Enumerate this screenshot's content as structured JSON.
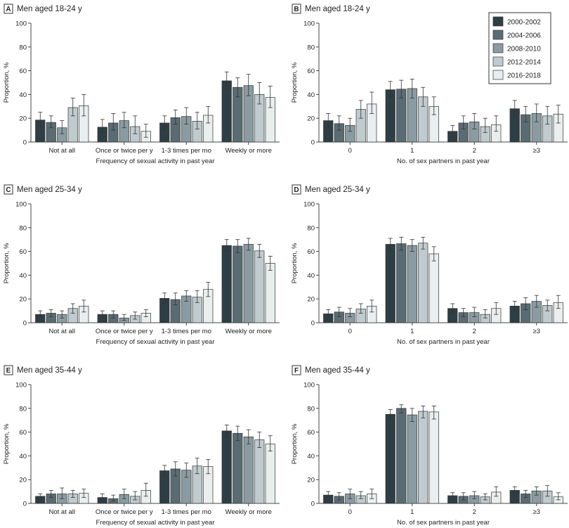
{
  "series_names": [
    "2000-2002",
    "2004-2006",
    "2008-2010",
    "2012-2014",
    "2016-2018"
  ],
  "colors": [
    "#2e3e45",
    "#5a6c73",
    "#8a9ca2",
    "#bfcbce",
    "#e9eeef"
  ],
  "chart_data": [
    {
      "type": "bar",
      "letter": "A",
      "title": "Men aged 18-24 y",
      "xlabel": "Frequency of sexual activity in past year",
      "ylabel": "Proportion, %",
      "ylim": [
        0,
        100
      ],
      "yticks": [
        0,
        20,
        40,
        60,
        80,
        100
      ],
      "categories": [
        "Not at all",
        "Once or twice per y",
        "1-3 times per mo",
        "Weekly or more"
      ],
      "series": [
        {
          "name": "2000-2002",
          "values": [
            18.5,
            12.5,
            16,
            51.5
          ],
          "lower": [
            13,
            8,
            11,
            45
          ],
          "upper": [
            25,
            19,
            22,
            59
          ]
        },
        {
          "name": "2004-2006",
          "values": [
            16.5,
            16,
            20.5,
            46
          ],
          "lower": [
            12,
            10,
            15,
            38
          ],
          "upper": [
            22,
            24,
            27,
            54
          ]
        },
        {
          "name": "2008-2010",
          "values": [
            12,
            18,
            21.5,
            47.5
          ],
          "lower": [
            7,
            12,
            15,
            39
          ],
          "upper": [
            18,
            25,
            29,
            57
          ]
        },
        {
          "name": "2012-2014",
          "values": [
            29,
            13,
            17.5,
            40
          ],
          "lower": [
            22,
            7,
            11,
            32
          ],
          "upper": [
            37,
            22,
            25,
            50
          ]
        },
        {
          "name": "2016-2018",
          "values": [
            30.5,
            9,
            22.5,
            37.5
          ],
          "lower": [
            22,
            4,
            16,
            29
          ],
          "upper": [
            40,
            15,
            30,
            47
          ]
        }
      ]
    },
    {
      "type": "bar",
      "letter": "B",
      "title": "Men aged 18-24 y",
      "xlabel": "No. of sex partners in past year",
      "ylabel": "Proportion, %",
      "ylim": [
        0,
        100
      ],
      "yticks": [
        0,
        20,
        40,
        60,
        80,
        100
      ],
      "categories": [
        "0",
        "1",
        "2",
        "≥3"
      ],
      "legend": "top-right",
      "series": [
        {
          "name": "2000-2002",
          "values": [
            18,
            44,
            9,
            28
          ],
          "lower": [
            12,
            38,
            5,
            22
          ],
          "upper": [
            24,
            51,
            14,
            35
          ]
        },
        {
          "name": "2004-2006",
          "values": [
            15.5,
            44.5,
            16,
            23
          ],
          "lower": [
            10,
            37,
            11,
            17
          ],
          "upper": [
            22,
            52,
            22,
            30
          ]
        },
        {
          "name": "2008-2010",
          "values": [
            14,
            45,
            17,
            24
          ],
          "lower": [
            9,
            37,
            11,
            17
          ],
          "upper": [
            20,
            53,
            24,
            32
          ]
        },
        {
          "name": "2012-2014",
          "values": [
            27.5,
            38,
            13,
            22
          ],
          "lower": [
            20,
            30,
            8,
            15
          ],
          "upper": [
            35,
            46,
            20,
            30
          ]
        },
        {
          "name": "2016-2018",
          "values": [
            32,
            30,
            14.5,
            23.5
          ],
          "lower": [
            24,
            23,
            9,
            16
          ],
          "upper": [
            42,
            38,
            22,
            31
          ]
        }
      ]
    },
    {
      "type": "bar",
      "letter": "C",
      "title": "Men aged 25-34 y",
      "xlabel": "Frequency of sexual activity in past year",
      "ylabel": "Proportion, %",
      "ylim": [
        0,
        100
      ],
      "yticks": [
        0,
        20,
        40,
        60,
        80,
        100
      ],
      "categories": [
        "Not at all",
        "Once or twice per y",
        "1-3 times per mo",
        "Weekly or more"
      ],
      "series": [
        {
          "name": "2000-2002",
          "values": [
            7,
            7,
            20.5,
            65
          ],
          "lower": [
            4,
            4,
            16,
            60
          ],
          "upper": [
            10,
            10,
            25,
            70
          ]
        },
        {
          "name": "2004-2006",
          "values": [
            8,
            7,
            19.5,
            64.5
          ],
          "lower": [
            5,
            4,
            15,
            59
          ],
          "upper": [
            11,
            10,
            25,
            70
          ]
        },
        {
          "name": "2008-2010",
          "values": [
            7,
            4,
            22.5,
            66
          ],
          "lower": [
            4,
            2,
            18,
            61
          ],
          "upper": [
            10,
            7,
            27,
            71
          ]
        },
        {
          "name": "2012-2014",
          "values": [
            12,
            6,
            21.5,
            60.5
          ],
          "lower": [
            8,
            3,
            17,
            55
          ],
          "upper": [
            16,
            9,
            27,
            66
          ]
        },
        {
          "name": "2016-2018",
          "values": [
            14,
            8,
            28,
            50
          ],
          "lower": [
            9,
            5,
            22,
            44
          ],
          "upper": [
            19,
            11,
            34,
            56
          ]
        }
      ]
    },
    {
      "type": "bar",
      "letter": "D",
      "title": "Men aged 25-34 y",
      "xlabel": "No. of sex partners in past year",
      "ylabel": "Proportion, %",
      "ylim": [
        0,
        100
      ],
      "yticks": [
        0,
        20,
        40,
        60,
        80,
        100
      ],
      "categories": [
        "0",
        "1",
        "2",
        "≥3"
      ],
      "series": [
        {
          "name": "2000-2002",
          "values": [
            7.5,
            66,
            12,
            14
          ],
          "lower": [
            4,
            61,
            8,
            10
          ],
          "upper": [
            11,
            71,
            16,
            18
          ]
        },
        {
          "name": "2004-2006",
          "values": [
            9,
            66.5,
            8.5,
            16
          ],
          "lower": [
            5,
            61,
            5,
            11
          ],
          "upper": [
            13,
            72,
            12,
            21
          ]
        },
        {
          "name": "2008-2010",
          "values": [
            8,
            65,
            8.5,
            18
          ],
          "lower": [
            5,
            60,
            5,
            13
          ],
          "upper": [
            12,
            70,
            13,
            23
          ]
        },
        {
          "name": "2012-2014",
          "values": [
            11.5,
            67,
            7,
            14.5
          ],
          "lower": [
            8,
            62,
            4,
            10
          ],
          "upper": [
            16,
            72,
            11,
            19
          ]
        },
        {
          "name": "2016-2018",
          "values": [
            14,
            58,
            12,
            17
          ],
          "lower": [
            9,
            52,
            7,
            12
          ],
          "upper": [
            19,
            64,
            17,
            23
          ]
        }
      ]
    },
    {
      "type": "bar",
      "letter": "E",
      "title": "Men aged 35-44 y",
      "xlabel": "Frequency of sexual activity in past year",
      "ylabel": "Proportion, %",
      "ylim": [
        0,
        100
      ],
      "yticks": [
        0,
        20,
        40,
        60,
        80,
        100
      ],
      "categories": [
        "Not at all",
        "Once or twice per y",
        "1-3 times per mo",
        "Weekly or more"
      ],
      "series": [
        {
          "name": "2000-2002",
          "values": [
            6,
            5,
            27.5,
            61
          ],
          "lower": [
            4,
            2,
            23,
            56
          ],
          "upper": [
            8,
            8,
            32,
            66
          ]
        },
        {
          "name": "2004-2006",
          "values": [
            8,
            4,
            29,
            59
          ],
          "lower": [
            5,
            2,
            23,
            53
          ],
          "upper": [
            11,
            7,
            35,
            65
          ]
        },
        {
          "name": "2008-2010",
          "values": [
            8,
            7.5,
            28,
            56
          ],
          "lower": [
            4,
            4,
            22,
            50
          ],
          "upper": [
            13,
            12,
            34,
            62
          ]
        },
        {
          "name": "2012-2014",
          "values": [
            8,
            6,
            31.5,
            53.5
          ],
          "lower": [
            5,
            3,
            25,
            47
          ],
          "upper": [
            11,
            10,
            38,
            60
          ]
        },
        {
          "name": "2016-2018",
          "values": [
            8.5,
            11,
            31,
            50
          ],
          "lower": [
            5,
            6,
            25,
            44
          ],
          "upper": [
            12,
            17,
            37,
            57
          ]
        }
      ]
    },
    {
      "type": "bar",
      "letter": "F",
      "title": "Men aged 35-44 y",
      "xlabel": "No. of sex partners in past year",
      "ylabel": "Proportion, %",
      "ylim": [
        0,
        100
      ],
      "yticks": [
        0,
        20,
        40,
        60,
        80,
        100
      ],
      "categories": [
        "0",
        "1",
        "2",
        "≥3"
      ],
      "series": [
        {
          "name": "2000-2002",
          "values": [
            7,
            75,
            6.5,
            11
          ],
          "lower": [
            5,
            71,
            4,
            8
          ],
          "upper": [
            10,
            79,
            9,
            14
          ]
        },
        {
          "name": "2004-2006",
          "values": [
            6,
            80,
            6,
            8
          ],
          "lower": [
            3,
            76,
            3,
            5
          ],
          "upper": [
            9,
            83,
            9,
            11
          ]
        },
        {
          "name": "2008-2010",
          "values": [
            8,
            74.5,
            6.5,
            10.5
          ],
          "lower": [
            4,
            69,
            4,
            7
          ],
          "upper": [
            12,
            80,
            10,
            14
          ]
        },
        {
          "name": "2012-2014",
          "values": [
            6.5,
            77.5,
            5.5,
            10.5
          ],
          "lower": [
            4,
            72,
            3,
            6
          ],
          "upper": [
            10,
            82,
            8,
            15
          ]
        },
        {
          "name": "2016-2018",
          "values": [
            8,
            77,
            9.5,
            5.5
          ],
          "lower": [
            4,
            71,
            6,
            3
          ],
          "upper": [
            12,
            82,
            14,
            9
          ]
        }
      ]
    }
  ]
}
